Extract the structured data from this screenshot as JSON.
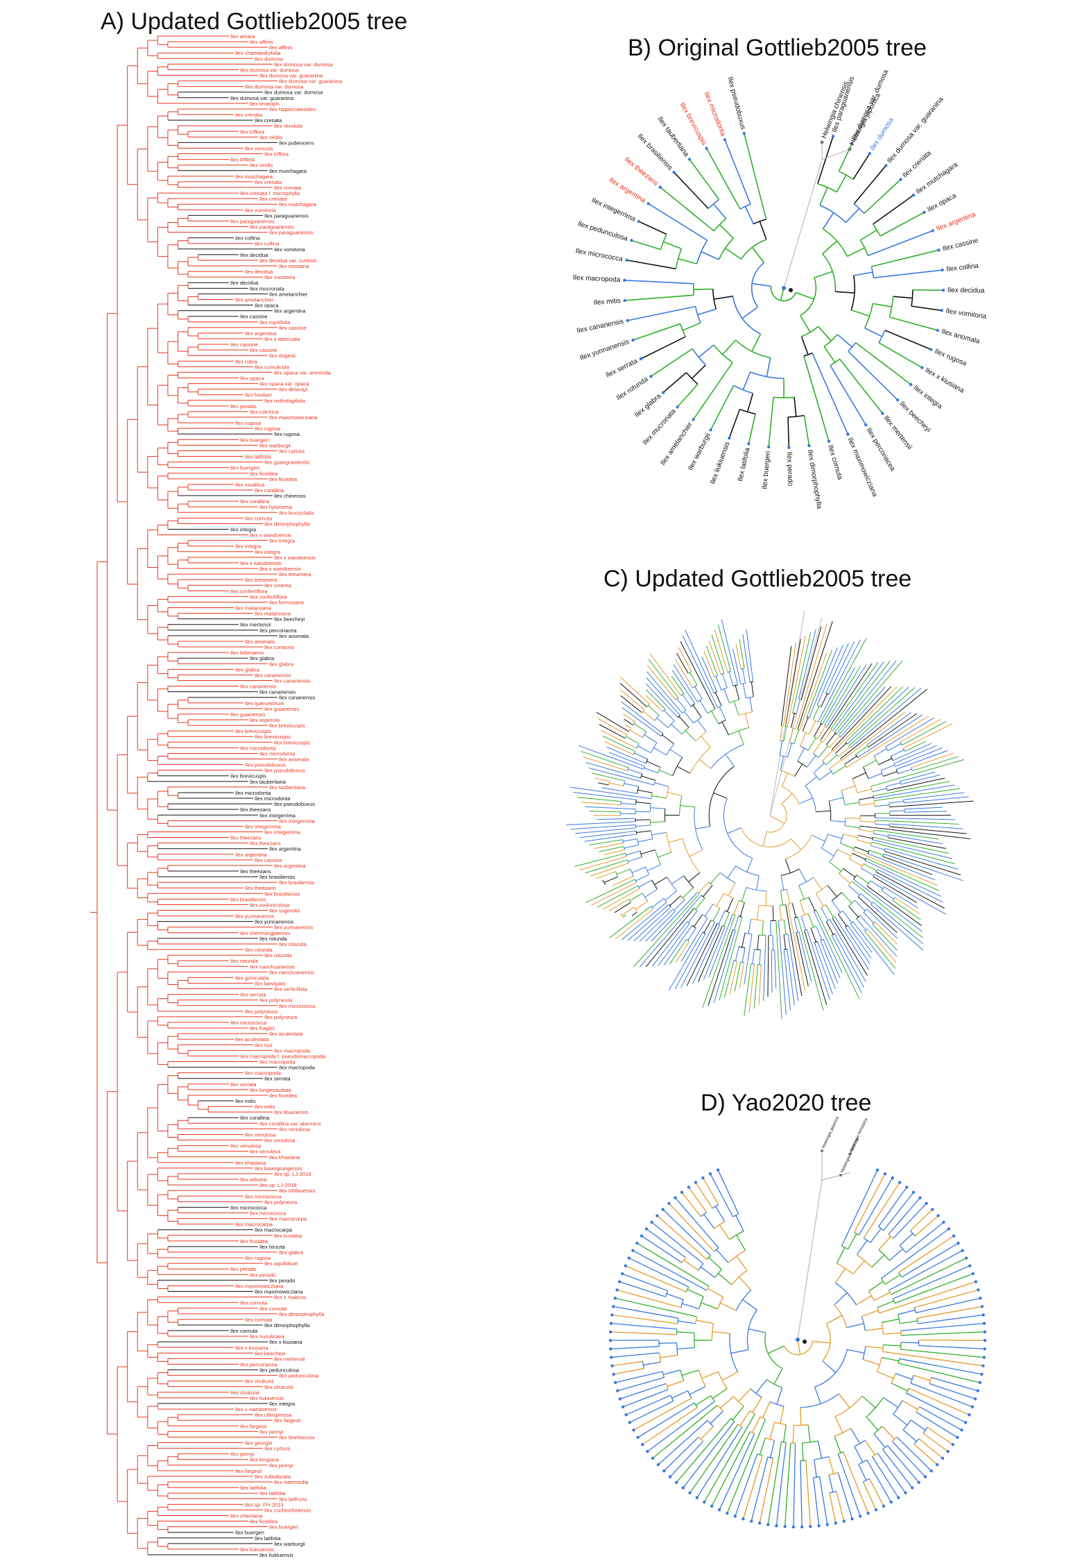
{
  "panels": {
    "a": {
      "title": "A) Updated Gottlieb2005 tree"
    },
    "b": {
      "title": "B) Original Gottlieb2005 tree"
    },
    "c": {
      "title": "C) Updated Gottlieb2005 tree"
    },
    "d": {
      "title": "D) Yao2020 tree"
    }
  },
  "colors": {
    "red": "#e8331f",
    "black": "#111111",
    "blue": "#3a78e0",
    "green": "#2fae2a",
    "orange": "#e39a2a",
    "gray": "#b9b9b9"
  },
  "tree_a_tips": [
    {
      "t": "Ilex amara",
      "c": "r"
    },
    {
      "t": "Ilex affinis",
      "c": "r"
    },
    {
      "t": "Ilex affinis",
      "c": "r"
    },
    {
      "t": "Ilex chamaedryfolia",
      "c": "r"
    },
    {
      "t": "Ilex dumosa",
      "c": "r"
    },
    {
      "t": "Ilex dumosa var. dumosa",
      "c": "r"
    },
    {
      "t": "Ilex dumosa var. dumosa",
      "c": "r"
    },
    {
      "t": "Ilex dumosa var. guaranina",
      "c": "r"
    },
    {
      "t": "Ilex dumosa var. guaranina",
      "c": "r"
    },
    {
      "t": "Ilex dumosa var. dumosa",
      "c": "r"
    },
    {
      "t": "Ilex dumosa var. dumosa",
      "c": "k"
    },
    {
      "t": "Ilex dumosa var. guaranina",
      "c": "k"
    },
    {
      "t": "Ilex teratopis",
      "c": "r"
    },
    {
      "t": "Ilex hippocrateoides",
      "c": "r"
    },
    {
      "t": "Ilex crenata",
      "c": "r"
    },
    {
      "t": "Ilex crenata",
      "c": "k"
    },
    {
      "t": "Ilex revoluta",
      "c": "r"
    },
    {
      "t": "Ilex triflora",
      "c": "r"
    },
    {
      "t": "Ilex viridis",
      "c": "r"
    },
    {
      "t": "Ilex pubescens",
      "c": "k"
    },
    {
      "t": "Ilex venusta",
      "c": "r"
    },
    {
      "t": "Ilex triflora",
      "c": "r"
    },
    {
      "t": "Ilex triflora",
      "c": "r"
    },
    {
      "t": "Ilex viridis",
      "c": "r"
    },
    {
      "t": "Ilex mutchagara",
      "c": "k"
    },
    {
      "t": "Ilex mutchagara",
      "c": "r"
    },
    {
      "t": "Ilex crenata",
      "c": "r"
    },
    {
      "t": "Ilex crenata",
      "c": "r"
    },
    {
      "t": "Ilex crenata f. microphylla",
      "c": "r"
    },
    {
      "t": "Ilex crenata",
      "c": "r"
    },
    {
      "t": "Ilex mutchagara",
      "c": "r"
    },
    {
      "t": "Ilex vomitoria",
      "c": "r"
    },
    {
      "t": "Ilex paraguariensis",
      "c": "k"
    },
    {
      "t": "Ilex paraguariensis",
      "c": "r"
    },
    {
      "t": "Ilex paraguariensis",
      "c": "r"
    },
    {
      "t": "Ilex paraguariensis",
      "c": "r"
    },
    {
      "t": "Ilex collina",
      "c": "k"
    },
    {
      "t": "Ilex collina",
      "c": "r"
    },
    {
      "t": "Ilex vomitoria",
      "c": "k"
    },
    {
      "t": "Ilex decidua",
      "c": "k"
    },
    {
      "t": "Ilex decidua var. curtissii",
      "c": "r"
    },
    {
      "t": "Ilex montana",
      "c": "r"
    },
    {
      "t": "Ilex decidua",
      "c": "r"
    },
    {
      "t": "Ilex vomitoria",
      "c": "r"
    },
    {
      "t": "Ilex decidua",
      "c": "k"
    },
    {
      "t": "Ilex mucronata",
      "c": "k"
    },
    {
      "t": "Ilex amelanchier",
      "c": "k"
    },
    {
      "t": "Ilex amelanchier",
      "c": "r"
    },
    {
      "t": "Ilex opaca",
      "c": "k"
    },
    {
      "t": "Ilex argentina",
      "c": "k"
    },
    {
      "t": "Ilex cassine",
      "c": "k"
    },
    {
      "t": "Ilex myrtifolia",
      "c": "r"
    },
    {
      "t": "Ilex cassine",
      "c": "r"
    },
    {
      "t": "Ilex argentina",
      "c": "r"
    },
    {
      "t": "Ilex x attenuata",
      "c": "r"
    },
    {
      "t": "Ilex cassine",
      "c": "r"
    },
    {
      "t": "Ilex cassine",
      "c": "r"
    },
    {
      "t": "Ilex dugesii",
      "c": "r"
    },
    {
      "t": "Ilex rubra",
      "c": "r"
    },
    {
      "t": "Ilex cumulicola",
      "c": "r"
    },
    {
      "t": "Ilex opaca var. arenicola",
      "c": "r"
    },
    {
      "t": "Ilex opaca",
      "c": "r"
    },
    {
      "t": "Ilex opaca var. opaca",
      "c": "r"
    },
    {
      "t": "Ilex delavayi",
      "c": "r"
    },
    {
      "t": "Ilex hookeri",
      "c": "r"
    },
    {
      "t": "Ilex nothofagifolia",
      "c": "r"
    },
    {
      "t": "Ilex perado",
      "c": "r"
    },
    {
      "t": "Ilex colchica",
      "c": "r"
    },
    {
      "t": "Ilex maximowicziana",
      "c": "r"
    },
    {
      "t": "Ilex rugosa",
      "c": "r"
    },
    {
      "t": "Ilex rugosa",
      "c": "r"
    },
    {
      "t": "Ilex rugosa",
      "c": "k"
    },
    {
      "t": "Ilex buergeri",
      "c": "r"
    },
    {
      "t": "Ilex warburgii",
      "c": "r"
    },
    {
      "t": "Ilex cyrtura",
      "c": "r"
    },
    {
      "t": "Ilex latifolia",
      "c": "r"
    },
    {
      "t": "Ilex guangnanensis",
      "c": "r"
    },
    {
      "t": "Ilex buergeri",
      "c": "r"
    },
    {
      "t": "Ilex ficoidea",
      "c": "r"
    },
    {
      "t": "Ilex ficoidea",
      "c": "r"
    },
    {
      "t": "Ilex corallina",
      "c": "r"
    },
    {
      "t": "Ilex corallina",
      "c": "r"
    },
    {
      "t": "Ilex chinensis",
      "c": "k"
    },
    {
      "t": "Ilex corallina",
      "c": "r"
    },
    {
      "t": "Ilex hylonoma",
      "c": "r"
    },
    {
      "t": "Ilex leucoclada",
      "c": "r"
    },
    {
      "t": "Ilex cornuta",
      "c": "r"
    },
    {
      "t": "Ilex dimorphophylla",
      "c": "r"
    },
    {
      "t": "Ilex integra",
      "c": "k"
    },
    {
      "t": "Ilex x wandoensis",
      "c": "r"
    },
    {
      "t": "Ilex integra",
      "c": "r"
    },
    {
      "t": "Ilex integra",
      "c": "r"
    },
    {
      "t": "Ilex integra",
      "c": "r"
    },
    {
      "t": "Ilex x wandoensis",
      "c": "r"
    },
    {
      "t": "Ilex x wandoensis",
      "c": "r"
    },
    {
      "t": "Ilex x wandoensis",
      "c": "r"
    },
    {
      "t": "Ilex tetramera",
      "c": "r"
    },
    {
      "t": "Ilex tetramera",
      "c": "r"
    },
    {
      "t": "Ilex cinerea",
      "c": "r"
    },
    {
      "t": "Ilex confertiflora",
      "c": "r"
    },
    {
      "t": "Ilex confertiflora",
      "c": "r"
    },
    {
      "t": "Ilex formosana",
      "c": "r"
    },
    {
      "t": "Ilex matanoana",
      "c": "r"
    },
    {
      "t": "Ilex matanoana",
      "c": "r"
    },
    {
      "t": "Ilex beecheyi",
      "c": "k"
    },
    {
      "t": "Ilex mertensii",
      "c": "k"
    },
    {
      "t": "Ilex percoriacea",
      "c": "k"
    },
    {
      "t": "Ilex anomala",
      "c": "k"
    },
    {
      "t": "Ilex anomala",
      "c": "r"
    },
    {
      "t": "Ilex coriacea",
      "c": "r"
    },
    {
      "t": "Ilex liebmannii",
      "c": "r"
    },
    {
      "t": "Ilex glabra",
      "c": "k"
    },
    {
      "t": "Ilex glabra",
      "c": "r"
    },
    {
      "t": "Ilex glabra",
      "c": "r"
    },
    {
      "t": "Ilex canariensis",
      "c": "r"
    },
    {
      "t": "Ilex canariensis",
      "c": "r"
    },
    {
      "t": "Ilex canariensis",
      "c": "r"
    },
    {
      "t": "Ilex canariensis",
      "c": "k"
    },
    {
      "t": "Ilex canariensis",
      "c": "k"
    },
    {
      "t": "Ilex quercetorum",
      "c": "r"
    },
    {
      "t": "Ilex guianensis",
      "c": "r"
    },
    {
      "t": "Ilex guianensis",
      "c": "r"
    },
    {
      "t": "Ilex asperula",
      "c": "r"
    },
    {
      "t": "Ilex brevicuspis",
      "c": "r"
    },
    {
      "t": "Ilex brevicuspis",
      "c": "r"
    },
    {
      "t": "Ilex brevicuspis",
      "c": "r"
    },
    {
      "t": "Ilex brevicuspis",
      "c": "r"
    },
    {
      "t": "Ilex microdonta",
      "c": "r"
    },
    {
      "t": "Ilex microdonta",
      "c": "r"
    },
    {
      "t": "Ilex anomala",
      "c": "r"
    },
    {
      "t": "Ilex pseudobuxus",
      "c": "r"
    },
    {
      "t": "Ilex pseudobuxus",
      "c": "r"
    },
    {
      "t": "Ilex brevicuspis",
      "c": "k"
    },
    {
      "t": "Ilex taubertiana",
      "c": "k"
    },
    {
      "t": "Ilex taubertiana",
      "c": "r"
    },
    {
      "t": "Ilex microdonta",
      "c": "k"
    },
    {
      "t": "Ilex microdonta",
      "c": "k"
    },
    {
      "t": "Ilex pseudobuxus",
      "c": "k"
    },
    {
      "t": "Ilex theezans",
      "c": "k"
    },
    {
      "t": "Ilex integerrima",
      "c": "k"
    },
    {
      "t": "Ilex integerrima",
      "c": "r"
    },
    {
      "t": "Ilex integerrima",
      "c": "r"
    },
    {
      "t": "Ilex integerrima",
      "c": "r"
    },
    {
      "t": "Ilex theezans",
      "c": "r"
    },
    {
      "t": "Ilex theezans",
      "c": "r"
    },
    {
      "t": "Ilex argentina",
      "c": "k"
    },
    {
      "t": "Ilex argentina",
      "c": "r"
    },
    {
      "t": "Ilex cassine",
      "c": "r"
    },
    {
      "t": "Ilex argentina",
      "c": "r"
    },
    {
      "t": "Ilex theezans",
      "c": "k"
    },
    {
      "t": "Ilex brasiliensis",
      "c": "k"
    },
    {
      "t": "Ilex brasiliensis",
      "c": "r"
    },
    {
      "t": "Ilex theezans",
      "c": "r"
    },
    {
      "t": "Ilex brasiliensis",
      "c": "r"
    },
    {
      "t": "Ilex brasiliensis",
      "c": "r"
    },
    {
      "t": "Ilex pedunculosa",
      "c": "r"
    },
    {
      "t": "Ilex sugerokii",
      "c": "r"
    },
    {
      "t": "Ilex yunnanensis",
      "c": "r"
    },
    {
      "t": "Ilex yunnanensis",
      "c": "k"
    },
    {
      "t": "Ilex yunnanensis",
      "c": "r"
    },
    {
      "t": "Ilex shennongjiaensis",
      "c": "r"
    },
    {
      "t": "Ilex rotunda",
      "c": "k"
    },
    {
      "t": "Ilex rotunda",
      "c": "r"
    },
    {
      "t": "Ilex rotunda",
      "c": "r"
    },
    {
      "t": "Ilex rotunda",
      "c": "r"
    },
    {
      "t": "Ilex rotunda",
      "c": "r"
    },
    {
      "t": "Ilex nanchuanensis",
      "c": "r"
    },
    {
      "t": "Ilex nanchuanensis",
      "c": "r"
    },
    {
      "t": "Ilex geniculata",
      "c": "r"
    },
    {
      "t": "Ilex laevigata",
      "c": "r"
    },
    {
      "t": "Ilex verticillata",
      "c": "r"
    },
    {
      "t": "Ilex serrata",
      "c": "r"
    },
    {
      "t": "Ilex polyneura",
      "c": "r"
    },
    {
      "t": "Ilex micrococca",
      "c": "r"
    },
    {
      "t": "Ilex polyneura",
      "c": "r"
    },
    {
      "t": "Ilex polyneura",
      "c": "r"
    },
    {
      "t": "Ilex micrococca",
      "c": "r"
    },
    {
      "t": "Ilex fragilis",
      "c": "r"
    },
    {
      "t": "Ilex aculeolata",
      "c": "r"
    },
    {
      "t": "Ilex aculeolata",
      "c": "r"
    },
    {
      "t": "Ilex tsoi",
      "c": "r"
    },
    {
      "t": "Ilex macropoda",
      "c": "r"
    },
    {
      "t": "Ilex macropoda f. pseudomacropoda",
      "c": "r"
    },
    {
      "t": "Ilex macropoda",
      "c": "r"
    },
    {
      "t": "Ilex macropoda",
      "c": "k"
    },
    {
      "t": "Ilex macropoda",
      "c": "r"
    },
    {
      "t": "Ilex serrata",
      "c": "k"
    },
    {
      "t": "Ilex serrata",
      "c": "r"
    },
    {
      "t": "Ilex longecaudata",
      "c": "r"
    },
    {
      "t": "Ilex ficoidea",
      "c": "r"
    },
    {
      "t": "Ilex mitis",
      "c": "k"
    },
    {
      "t": "Ilex mitis",
      "c": "r"
    },
    {
      "t": "Ilex lituanensis",
      "c": "r"
    },
    {
      "t": "Ilex corallina",
      "c": "k"
    },
    {
      "t": "Ilex corallina var. aberrans",
      "c": "r"
    },
    {
      "t": "Ilex venulosa",
      "c": "r"
    },
    {
      "t": "Ilex venulosa",
      "c": "r"
    },
    {
      "t": "Ilex venulosa",
      "c": "r"
    },
    {
      "t": "Ilex venulosa",
      "c": "r"
    },
    {
      "t": "Ilex venulosa",
      "c": "r"
    },
    {
      "t": "Ilex khasiana",
      "c": "r"
    },
    {
      "t": "Ilex khasiana",
      "c": "r"
    },
    {
      "t": "Ilex kwangtungensis",
      "c": "r"
    },
    {
      "t": "Ilex sp. LJ-2018",
      "c": "r"
    },
    {
      "t": "Ilex wilsonii",
      "c": "r"
    },
    {
      "t": "Ilex sp. LJ-2018",
      "c": "r"
    },
    {
      "t": "Ilex lohfauensis",
      "c": "r"
    },
    {
      "t": "Ilex micrococca",
      "c": "r"
    },
    {
      "t": "Ilex polyneura",
      "c": "r"
    },
    {
      "t": "Ilex micrococca",
      "c": "k"
    },
    {
      "t": "Ilex micrococca",
      "c": "r"
    },
    {
      "t": "Ilex macrocarpa",
      "c": "r"
    },
    {
      "t": "Ilex macrocarpa",
      "c": "r"
    },
    {
      "t": "Ilex macrocarpa",
      "c": "k"
    },
    {
      "t": "Ilex kusiana",
      "c": "r"
    },
    {
      "t": "Ilex ficoidea",
      "c": "r"
    },
    {
      "t": "Ilex hirsuta",
      "c": "k"
    },
    {
      "t": "Ilex glabra",
      "c": "r"
    },
    {
      "t": "Ilex rugosa",
      "c": "r"
    },
    {
      "t": "Ilex aquifolium",
      "c": "r"
    },
    {
      "t": "Ilex perado",
      "c": "r"
    },
    {
      "t": "Ilex perado",
      "c": "r"
    },
    {
      "t": "Ilex perado",
      "c": "k"
    },
    {
      "t": "Ilex maximowicziana",
      "c": "r"
    },
    {
      "t": "Ilex maximowicziana",
      "c": "k"
    },
    {
      "t": "Ilex x makinoi",
      "c": "r"
    },
    {
      "t": "Ilex cornuta",
      "c": "r"
    },
    {
      "t": "Ilex cornuta",
      "c": "r"
    },
    {
      "t": "Ilex dimorphophylla",
      "c": "r"
    },
    {
      "t": "Ilex cornuta",
      "c": "r"
    },
    {
      "t": "Ilex dimorphophylla",
      "c": "k"
    },
    {
      "t": "Ilex cornuta",
      "c": "k"
    },
    {
      "t": "Ilex nuculicava",
      "c": "r"
    },
    {
      "t": "Ilex x kiusiana",
      "c": "k"
    },
    {
      "t": "Ilex x kiusiana",
      "c": "r"
    },
    {
      "t": "Ilex beecheyi",
      "c": "r"
    },
    {
      "t": "Ilex mertensii",
      "c": "r"
    },
    {
      "t": "Ilex percoriacea",
      "c": "r"
    },
    {
      "t": "Ilex pedunculosa",
      "c": "k"
    },
    {
      "t": "Ilex pedunculosa",
      "c": "r"
    },
    {
      "t": "Ilex shukunii",
      "c": "r"
    },
    {
      "t": "Ilex shukunii",
      "c": "r"
    },
    {
      "t": "Ilex shukunii",
      "c": "r"
    },
    {
      "t": "Ilex liukiuensis",
      "c": "r"
    },
    {
      "t": "Ilex integra",
      "c": "k"
    },
    {
      "t": "Ilex x wandoensis",
      "c": "r"
    },
    {
      "t": "Ilex ciliospinosa",
      "c": "r"
    },
    {
      "t": "Ilex fargesii",
      "c": "r"
    },
    {
      "t": "Ilex fargesii",
      "c": "r"
    },
    {
      "t": "Ilex pernyi",
      "c": "r"
    },
    {
      "t": "Ilex bioritsensis",
      "c": "r"
    },
    {
      "t": "Ilex georgei",
      "c": "r"
    },
    {
      "t": "Ilex cyrtura",
      "c": "r"
    },
    {
      "t": "Ilex pernyi",
      "c": "r"
    },
    {
      "t": "Ilex kingiana",
      "c": "r"
    },
    {
      "t": "Ilex pernyi",
      "c": "r"
    },
    {
      "t": "Ilex fargesii",
      "c": "r"
    },
    {
      "t": "Ilex subodorata",
      "c": "r"
    },
    {
      "t": "Ilex intermedia",
      "c": "r"
    },
    {
      "t": "Ilex latifolia",
      "c": "r"
    },
    {
      "t": "Ilex latifolia",
      "c": "r"
    },
    {
      "t": "Ilex latifrons",
      "c": "r"
    },
    {
      "t": "Ilex sp. FH-2013",
      "c": "r"
    },
    {
      "t": "Ilex cochinchinensis",
      "c": "r"
    },
    {
      "t": "Ilex chieniana",
      "c": "r"
    },
    {
      "t": "Ilex ficoidea",
      "c": "r"
    },
    {
      "t": "Ilex buergeri",
      "c": "r"
    },
    {
      "t": "Ilex buergeri",
      "c": "k"
    },
    {
      "t": "Ilex latifolia",
      "c": "k"
    },
    {
      "t": "Ilex warburgii",
      "c": "k"
    },
    {
      "t": "Ilex liukiuensis",
      "c": "r"
    },
    {
      "t": "Ilex liukiuensis",
      "c": "k"
    }
  ],
  "tree_b_tips": [
    {
      "t": "Ilex paraguariensis",
      "c": "k"
    },
    {
      "t": "Ilex dumosa var. dumosa",
      "c": "k"
    },
    {
      "t": "Ilex dumosa",
      "c": "b"
    },
    {
      "t": "Ilex dumosa var. guaranina",
      "c": "k"
    },
    {
      "t": "Ilex crenata",
      "c": "k"
    },
    {
      "t": "Ilex mutchagara",
      "c": "k"
    },
    {
      "t": "Ilex opaca",
      "c": "k"
    },
    {
      "t": "Ilex argentina",
      "c": "r"
    },
    {
      "t": "Ilex cassine",
      "c": "k"
    },
    {
      "t": "Ilex collina",
      "c": "k"
    },
    {
      "t": "Ilex decidua",
      "c": "k"
    },
    {
      "t": "Ilex vomitoria",
      "c": "k"
    },
    {
      "t": "Ilex anomala",
      "c": "k"
    },
    {
      "t": "Ilex rugosa",
      "c": "k"
    },
    {
      "t": "Ilex x kiusiana",
      "c": "k"
    },
    {
      "t": "Ilex integra",
      "c": "k"
    },
    {
      "t": "Ilex beecheyi",
      "c": "k"
    },
    {
      "t": "Ilex mertensii",
      "c": "k"
    },
    {
      "t": "Ilex percoriacea",
      "c": "k"
    },
    {
      "t": "Ilex maximowicziana",
      "c": "k"
    },
    {
      "t": "Ilex cornuta",
      "c": "k"
    },
    {
      "t": "Ilex dimorphophylla",
      "c": "k"
    },
    {
      "t": "Ilex perado",
      "c": "k"
    },
    {
      "t": "Ilex buergeri",
      "c": "k"
    },
    {
      "t": "Ilex latifolia",
      "c": "k"
    },
    {
      "t": "Ilex liukiuensis",
      "c": "k"
    },
    {
      "t": "Ilex warburgii",
      "c": "k"
    },
    {
      "t": "Ilex amelanchier",
      "c": "k"
    },
    {
      "t": "Ilex mucronata",
      "c": "k"
    },
    {
      "t": "Ilex glabra",
      "c": "k"
    },
    {
      "t": "Ilex rotunda",
      "c": "k"
    },
    {
      "t": "Ilex serrata",
      "c": "k"
    },
    {
      "t": "Ilex yunnanensis",
      "c": "k"
    },
    {
      "t": "Ilex canariensis",
      "c": "k"
    },
    {
      "t": "Ilex mitis",
      "c": "k"
    },
    {
      "t": "Ilex macropoda",
      "c": "k"
    },
    {
      "t": "Ilex micrococca",
      "c": "k"
    },
    {
      "t": "Ilex pedunculosa",
      "c": "k"
    },
    {
      "t": "Ilex integerrima",
      "c": "k"
    },
    {
      "t": "Ilex argentina",
      "c": "r"
    },
    {
      "t": "Ilex theezans",
      "c": "r"
    },
    {
      "t": "Ilex brasiliensis",
      "c": "k"
    },
    {
      "t": "Ilex taubertiana",
      "c": "k"
    },
    {
      "t": "Ilex brevicuspis",
      "c": "r"
    },
    {
      "t": "Ilex microdonta",
      "c": "r"
    },
    {
      "t": "Ilex pseudobuxus",
      "c": "k"
    },
    {
      "t": "Helwingia chinensis",
      "c": "k"
    },
    {
      "t": "Helwingia japonica",
      "c": "k"
    }
  ],
  "tree_d_outgroup": [
    "Helwingia japonica",
    "Helwingia himalaica",
    "Helwingia omeiensis"
  ]
}
